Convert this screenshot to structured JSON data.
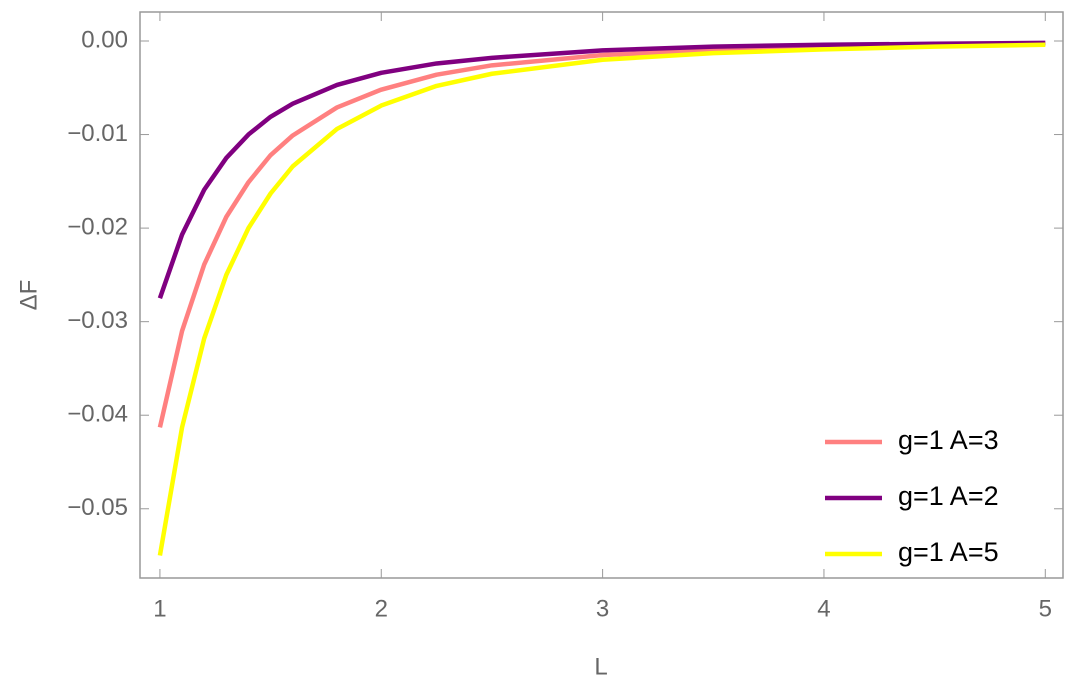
{
  "chart_data": {
    "type": "line",
    "x_label": "L",
    "y_label": "ΔF",
    "x": [
      1,
      1.1,
      1.2,
      1.3,
      1.4,
      1.5,
      1.6,
      1.8,
      2,
      2.25,
      2.5,
      3,
      3.5,
      4,
      4.5,
      5
    ],
    "series": [
      {
        "name": "g=1 A=3",
        "color": "#ff8080",
        "values": [
          -0.0413,
          -0.031,
          -0.0239,
          -0.0188,
          -0.0151,
          -0.0122,
          -0.0101,
          -0.0071,
          -0.0052,
          -0.0036,
          -0.0026,
          -0.0015,
          -0.001,
          -0.0006,
          -0.0005,
          -0.0003
        ]
      },
      {
        "name": "g=1 A=2",
        "color": "#800080",
        "values": [
          -0.0275,
          -0.0207,
          -0.0159,
          -0.0125,
          -0.01,
          -0.0081,
          -0.0067,
          -0.0047,
          -0.0034,
          -0.0024,
          -0.0018,
          -0.001,
          -0.0006,
          -0.0004,
          -0.0003,
          -0.0002
        ]
      },
      {
        "name": "g=1 A=5",
        "color": "#ffff00",
        "values": [
          -0.055,
          -0.0413,
          -0.0318,
          -0.025,
          -0.02,
          -0.0163,
          -0.0134,
          -0.0094,
          -0.0069,
          -0.0048,
          -0.0035,
          -0.002,
          -0.0013,
          -0.0009,
          -0.0006,
          -0.0004
        ]
      }
    ],
    "xlim": [
      0.91,
      5.08
    ],
    "ylim": [
      -0.0574,
      0.0031
    ],
    "xticks": [
      1,
      2,
      3,
      4,
      5
    ],
    "yticks": [
      {
        "value": 0,
        "label": "0.00"
      },
      {
        "value": -0.01,
        "label": "−0.01"
      },
      {
        "value": -0.02,
        "label": "−0.02"
      },
      {
        "value": -0.03,
        "label": "−0.03"
      },
      {
        "value": -0.04,
        "label": "−0.04"
      },
      {
        "value": -0.05,
        "label": "−0.05"
      }
    ],
    "grid": false,
    "legend": "bottom-right"
  }
}
